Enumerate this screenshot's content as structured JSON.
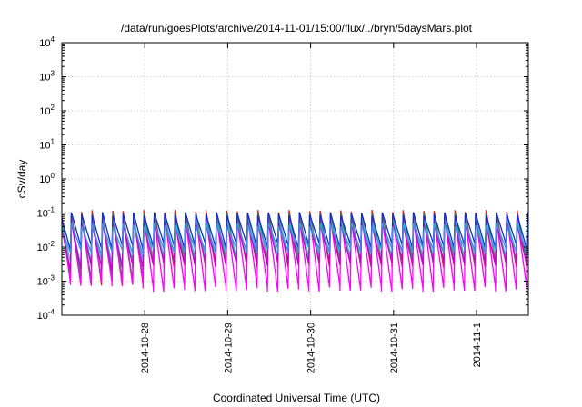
{
  "chart_data": {
    "type": "line",
    "title": "/data/run/goesPlots/archive/2014-11-01/15:00/flux/../bryn/5daysMars.plot",
    "xlabel": "Coordinated Universal Time (UTC)",
    "ylabel": "cSv/day",
    "yscale": "log",
    "ylim": [
      0.0001,
      10000
    ],
    "y_tick_labels": [
      {
        "base": "10",
        "exp": "-4",
        "value": 0.0001
      },
      {
        "base": "10",
        "exp": "-3",
        "value": 0.001
      },
      {
        "base": "10",
        "exp": "-2",
        "value": 0.01
      },
      {
        "base": "10",
        "exp": "-1",
        "value": 0.1
      },
      {
        "base": "10",
        "exp": "0",
        "value": 1
      },
      {
        "base": "10",
        "exp": "1",
        "value": 10
      },
      {
        "base": "10",
        "exp": "2",
        "value": 100
      },
      {
        "base": "10",
        "exp": "3",
        "value": 1000
      },
      {
        "base": "10",
        "exp": "4",
        "value": 10000
      }
    ],
    "xlim": [
      "2014-10-27T00:00",
      "2014-11-01T15:00"
    ],
    "x_tick_labels": [
      {
        "label": "2014-10-28",
        "value": "2014-10-28T00:00"
      },
      {
        "label": "2014-10-29",
        "value": "2014-10-29T00:00"
      },
      {
        "label": "2014-10-30",
        "value": "2014-10-30T00:00"
      },
      {
        "label": "2014-10-31",
        "value": "2014-10-31T00:00"
      },
      {
        "label": "2014-11-1",
        "value": "2014-11-01T00:00"
      }
    ],
    "grid": true,
    "legend": "none",
    "pattern": "sawtooth: sharp rise to peak every ~3 h, then decay",
    "series": [
      {
        "color": "#e8181e",
        "peak": 0.11,
        "trough": 0.0009,
        "trough_late": 0.003
      },
      {
        "color": "#1a9641",
        "peak": 0.09,
        "trough": 0.0012,
        "trough_late": 0.004
      },
      {
        "color": "#ff00ff",
        "peak": 0.075,
        "trough": 0.00085,
        "trough_late": 0.0006
      },
      {
        "color": "#2bbbb8",
        "peak": 0.06,
        "trough": 0.0035,
        "trough_late": 0.006
      },
      {
        "color": "#cc00cc",
        "peak": 0.05,
        "trough": 0.0025,
        "trough_late": 0.0035
      },
      {
        "color": "#0f2fd0",
        "peak": 0.095,
        "trough": 0.01,
        "trough_late": 0.011
      },
      {
        "color": "#3f8fe8",
        "peak": 0.045,
        "trough": 0.007,
        "trough_late": 0.008
      }
    ]
  }
}
